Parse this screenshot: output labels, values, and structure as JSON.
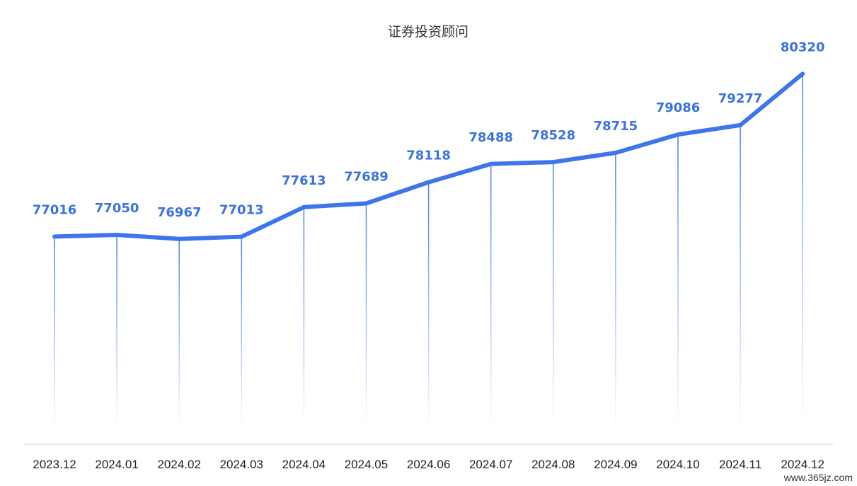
{
  "chart_data": {
    "type": "line",
    "title": "证券投资顾问",
    "categories": [
      "2023.12",
      "2024.01",
      "2024.02",
      "2024.03",
      "2024.04",
      "2024.05",
      "2024.06",
      "2024.07",
      "2024.08",
      "2024.09",
      "2024.10",
      "2024.11",
      "2024.12"
    ],
    "series": [
      {
        "values": [
          77016,
          77050,
          76967,
          77013,
          77613,
          77689,
          78118,
          78488,
          78528,
          78715,
          79086,
          79277,
          80320
        ]
      }
    ],
    "ylim": [
      72800,
      81300
    ],
    "grid": false,
    "data_labels": true,
    "colors": {
      "line": "#3f75ec",
      "label": "#3a73e0",
      "drop": "#4d7fe6",
      "axis": "#cccccc"
    }
  },
  "watermark": "www.365jz.com"
}
